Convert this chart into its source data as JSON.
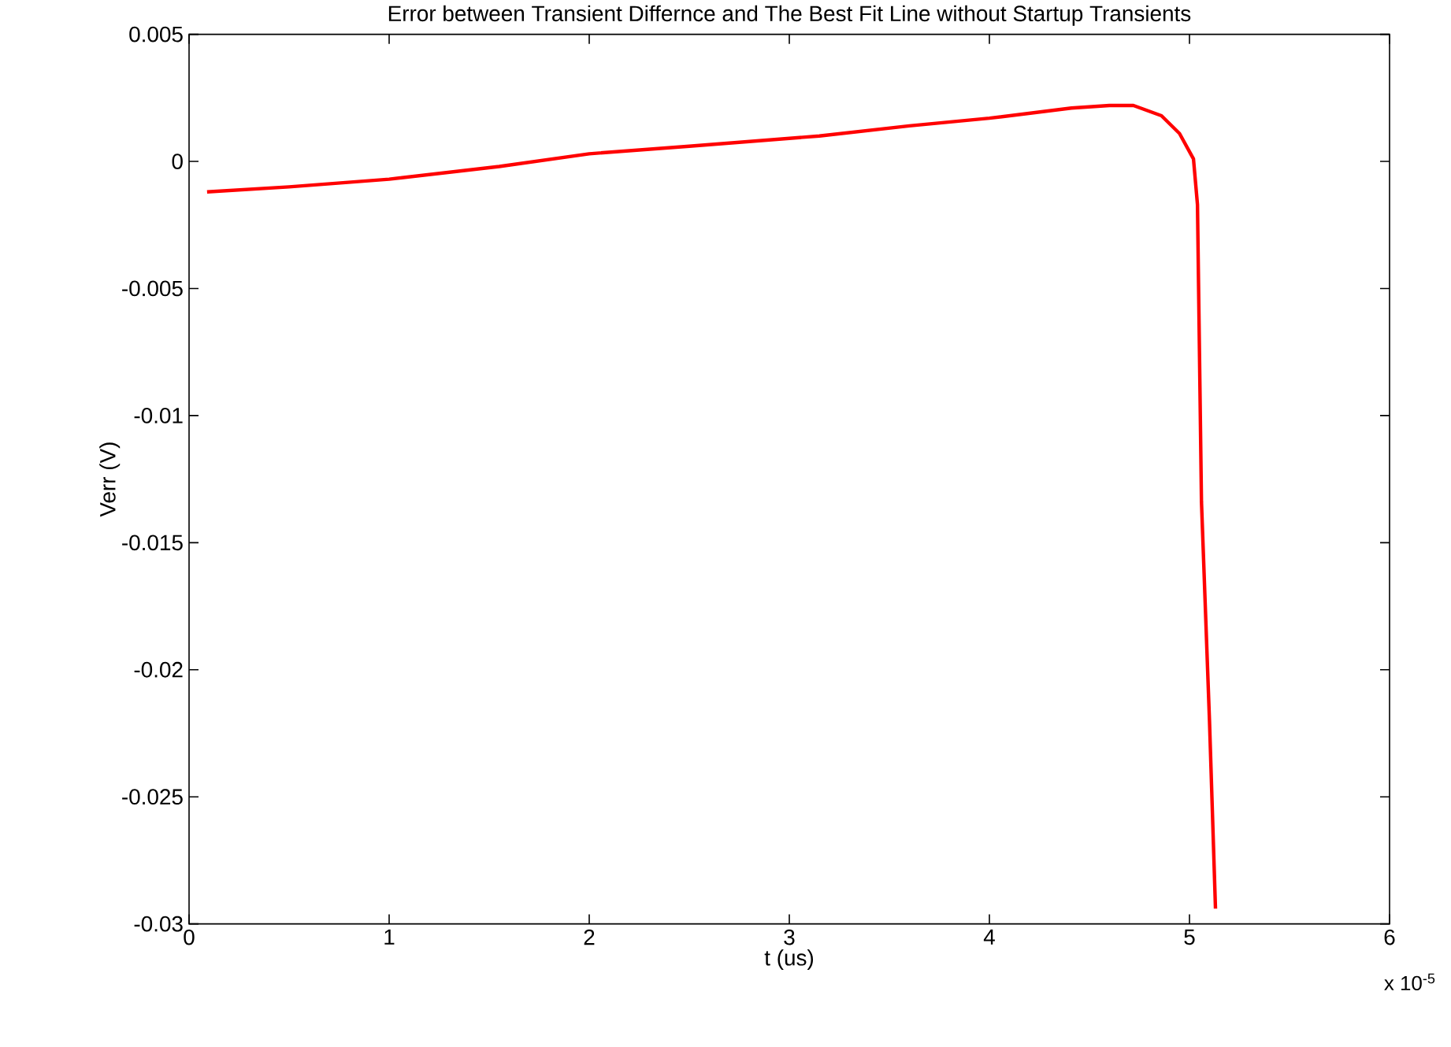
{
  "chart_data": {
    "type": "line",
    "title": "Error between Transient Differnce and The Best Fit Line without Startup Transients",
    "xlabel": "t (us)",
    "ylabel": "Verr (V)",
    "annotations": [
      "x 10$^{-5}$"
    ],
    "xlim": [
      0,
      6
    ],
    "xticks": [
      0,
      1,
      2,
      3,
      4,
      5,
      6
    ],
    "ylim": [
      -0.03,
      0.005
    ],
    "yticks": [
      -0.03,
      -0.025,
      -0.02,
      -0.015,
      -0.01,
      -0.005,
      0,
      0.005
    ],
    "series": [
      {
        "color": "#ff0000",
        "x": [
          0.09,
          0.5,
          1.0,
          1.55,
          2.0,
          2.5,
          3.15,
          3.6,
          4.0,
          4.41,
          4.6,
          4.72,
          4.86,
          4.95,
          5.02,
          5.04,
          5.06,
          5.1,
          5.13
        ],
        "values": [
          -0.0012,
          -0.001,
          -0.0007,
          -0.0002,
          0.0003,
          0.0006,
          0.001,
          0.0014,
          0.0017,
          0.0021,
          0.0022,
          0.0022,
          0.0018,
          0.0011,
          0.0001,
          -0.0017,
          -0.0134,
          -0.022,
          -0.0294
        ]
      }
    ]
  }
}
